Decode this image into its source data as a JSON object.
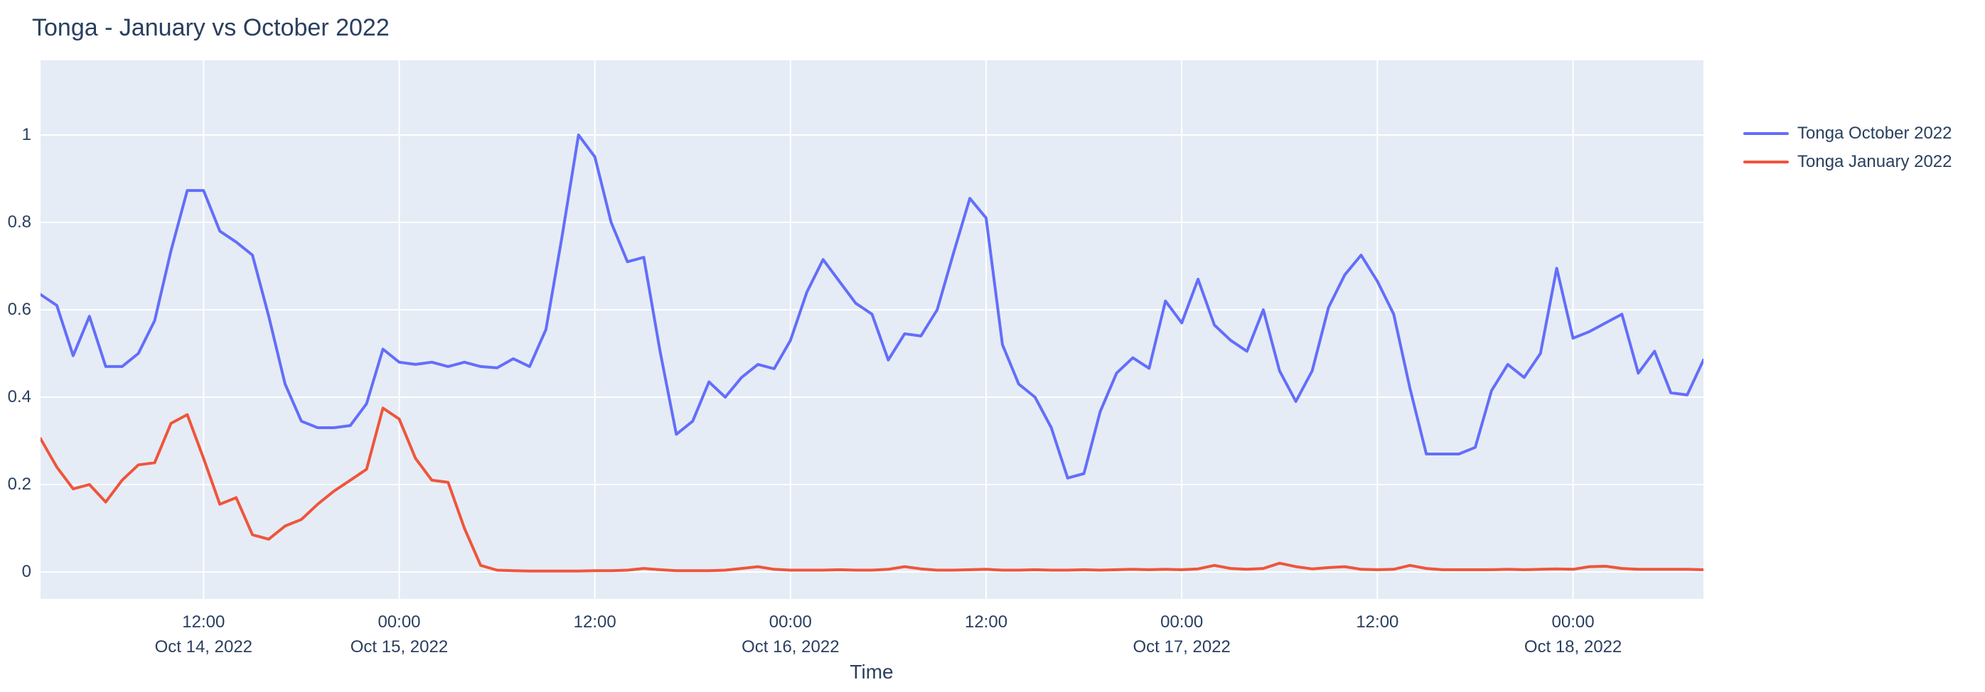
{
  "chart_data": {
    "type": "line",
    "title": "Tonga - January vs October 2022",
    "xlabel": "Time",
    "ylabel": "",
    "x_start": "2022-10-14 02:00",
    "x_end": "2022-10-18 08:00",
    "x_step_hours": 1,
    "ylim": [
      -0.062,
      1.17
    ],
    "grid": true,
    "legend_position": "right",
    "colors": {
      "plot_background": "#E5ECF6",
      "grid": "#FFFFFF",
      "text": "#2a3f5f",
      "paper_background": "#FFFFFF"
    },
    "y_ticks": [
      "0",
      "0.2",
      "0.4",
      "0.6",
      "0.8",
      "1"
    ],
    "y_tick_values": [
      0,
      0.2,
      0.4,
      0.6,
      0.8,
      1
    ],
    "x_ticks": [
      {
        "hour": 10,
        "time": "12:00",
        "date": "Oct 14, 2022"
      },
      {
        "hour": 22,
        "time": "00:00",
        "date": "Oct 15, 2022"
      },
      {
        "hour": 34,
        "time": "12:00",
        "date": ""
      },
      {
        "hour": 46,
        "time": "00:00",
        "date": "Oct 16, 2022"
      },
      {
        "hour": 58,
        "time": "12:00",
        "date": ""
      },
      {
        "hour": 70,
        "time": "00:00",
        "date": "Oct 17, 2022"
      },
      {
        "hour": 82,
        "time": "12:00",
        "date": ""
      },
      {
        "hour": 94,
        "time": "00:00",
        "date": "Oct 18, 2022"
      }
    ],
    "series": [
      {
        "name": "Tonga October 2022",
        "color": "#636EFA",
        "values": [
          0.635,
          0.61,
          0.495,
          0.585,
          0.47,
          0.47,
          0.5,
          0.575,
          0.735,
          0.873,
          0.873,
          0.78,
          0.755,
          0.725,
          0.585,
          0.43,
          0.345,
          0.33,
          0.33,
          0.335,
          0.385,
          0.51,
          0.48,
          0.475,
          0.48,
          0.47,
          0.48,
          0.47,
          0.467,
          0.488,
          0.47,
          0.555,
          0.77,
          1.0,
          0.95,
          0.8,
          0.71,
          0.72,
          0.505,
          0.315,
          0.345,
          0.435,
          0.4,
          0.445,
          0.475,
          0.465,
          0.53,
          0.64,
          0.715,
          0.665,
          0.615,
          0.59,
          0.485,
          0.545,
          0.54,
          0.6,
          0.73,
          0.855,
          0.81,
          0.52,
          0.43,
          0.4,
          0.33,
          0.215,
          0.225,
          0.367,
          0.455,
          0.49,
          0.466,
          0.62,
          0.57,
          0.67,
          0.565,
          0.53,
          0.505,
          0.6,
          0.46,
          0.39,
          0.46,
          0.605,
          0.68,
          0.725,
          0.665,
          0.59,
          0.42,
          0.27,
          0.27,
          0.27,
          0.285,
          0.415,
          0.475,
          0.445,
          0.5,
          0.695,
          0.535,
          0.55,
          0.57,
          0.59,
          0.455,
          0.505,
          0.41,
          0.405,
          0.485
        ]
      },
      {
        "name": "Tonga January 2022",
        "color": "#EF553B",
        "values": [
          0.305,
          0.24,
          0.19,
          0.2,
          0.16,
          0.21,
          0.245,
          0.25,
          0.34,
          0.36,
          0.26,
          0.155,
          0.17,
          0.085,
          0.075,
          0.105,
          0.12,
          0.155,
          0.185,
          0.21,
          0.235,
          0.375,
          0.35,
          0.26,
          0.21,
          0.205,
          0.1,
          0.015,
          0.004,
          0.003,
          0.002,
          0.002,
          0.002,
          0.002,
          0.003,
          0.003,
          0.004,
          0.008,
          0.005,
          0.003,
          0.003,
          0.003,
          0.004,
          0.008,
          0.012,
          0.006,
          0.004,
          0.004,
          0.004,
          0.005,
          0.004,
          0.004,
          0.006,
          0.012,
          0.007,
          0.004,
          0.004,
          0.005,
          0.006,
          0.004,
          0.004,
          0.005,
          0.004,
          0.004,
          0.005,
          0.004,
          0.005,
          0.006,
          0.005,
          0.006,
          0.005,
          0.007,
          0.015,
          0.008,
          0.006,
          0.008,
          0.02,
          0.012,
          0.007,
          0.01,
          0.012,
          0.006,
          0.005,
          0.006,
          0.015,
          0.008,
          0.005,
          0.005,
          0.005,
          0.005,
          0.006,
          0.005,
          0.006,
          0.007,
          0.006,
          0.012,
          0.013,
          0.008,
          0.006,
          0.006,
          0.006,
          0.006,
          0.005
        ]
      }
    ]
  }
}
